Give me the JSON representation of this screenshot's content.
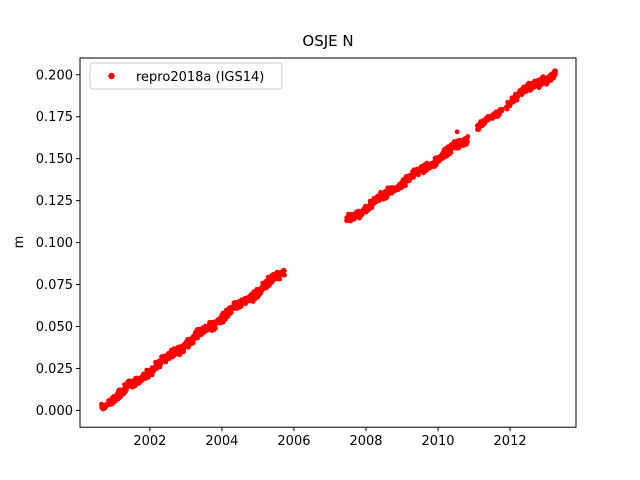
{
  "chart_data": {
    "type": "scatter",
    "title": "OSJE N",
    "xlabel": "",
    "ylabel": "m",
    "xlim": [
      2000.06,
      2013.83
    ],
    "ylim": [
      -0.01,
      0.21
    ],
    "xticks": [
      2002,
      2004,
      2006,
      2008,
      2010,
      2012
    ],
    "yticks": [
      0.0,
      0.025,
      0.05,
      0.075,
      0.1,
      0.125,
      0.15,
      0.175,
      0.2
    ],
    "grid": false,
    "legend_position": "upper left",
    "frame_color": "#000000",
    "legend_edge_color": "#cccccc",
    "series": [
      {
        "name": "repro2018a (IGS14)",
        "color": "#ff0000",
        "marker": "dot",
        "marker_radius_px": 2.4,
        "trend_rate_m_per_yr": 0.016,
        "data_gap_years": [
          2005.75,
          2007.45
        ],
        "seasonal": {
          "amplitude": 0.0011,
          "period": 1.0,
          "phase": 0.15
        },
        "random_seed": 42,
        "segments": [
          {
            "t_start": 2000.65,
            "t_end": 2005.75,
            "v_start": 0.002,
            "v_end": 0.083,
            "n_points": 520,
            "noise": 0.0016
          },
          {
            "t_start": 2007.45,
            "t_end": 2010.83,
            "v_start": 0.1125,
            "v_end": 0.162,
            "n_points": 380,
            "noise": 0.0016
          },
          {
            "t_start": 2011.08,
            "t_end": 2011.8,
            "v_start": 0.168,
            "v_end": 0.18,
            "n_points": 60,
            "noise": 0.0014
          },
          {
            "t_start": 2011.9,
            "t_end": 2012.08,
            "v_start": 0.182,
            "v_end": 0.1855,
            "n_points": 14,
            "noise": 0.0012
          },
          {
            "t_start": 2012.12,
            "t_end": 2012.4,
            "v_start": 0.186,
            "v_end": 0.19,
            "n_points": 26,
            "noise": 0.0014
          },
          {
            "t_start": 2012.42,
            "t_end": 2012.92,
            "v_start": 0.1903,
            "v_end": 0.1975,
            "n_points": 110,
            "noise": 0.0014
          },
          {
            "t_start": 2012.97,
            "t_end": 2013.27,
            "v_start": 0.1968,
            "v_end": 0.2005,
            "n_points": 55,
            "noise": 0.0013
          }
        ],
        "outliers": [
          [
            2001.15,
            0.0075
          ],
          [
            2010.53,
            0.166
          ]
        ]
      }
    ]
  }
}
